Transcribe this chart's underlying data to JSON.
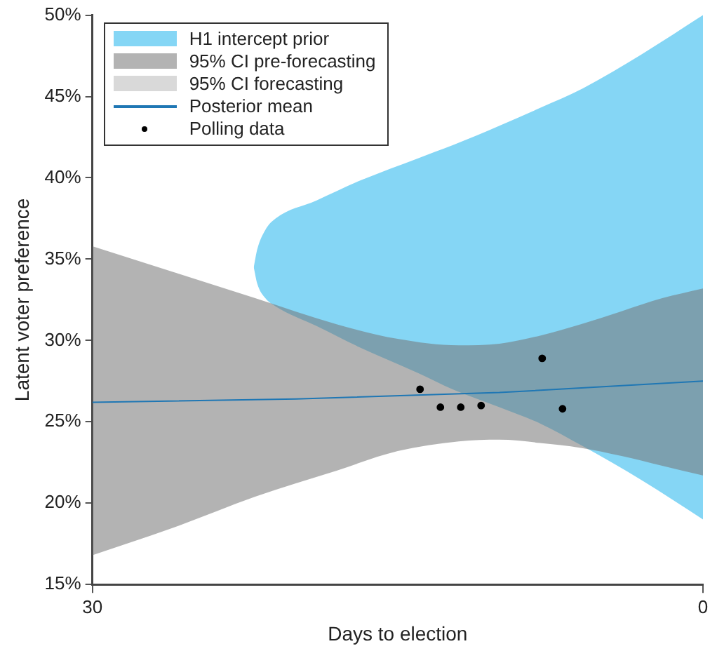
{
  "chart_data": {
    "type": "line",
    "xlabel": "Days to election",
    "ylabel": "Latent voter preference",
    "xlim": [
      30,
      0
    ],
    "xticks": [
      30,
      0
    ],
    "ylim": [
      15,
      50
    ],
    "yticks": [
      {
        "value": 15,
        "label": "15%"
      },
      {
        "value": 20,
        "label": "20%"
      },
      {
        "value": 25,
        "label": "25%"
      },
      {
        "value": 30,
        "label": "30%"
      },
      {
        "value": 35,
        "label": "35%"
      },
      {
        "value": 40,
        "label": "40%"
      },
      {
        "value": 45,
        "label": "45%"
      },
      {
        "value": 50,
        "label": "50%"
      }
    ],
    "grid": false,
    "legend": "top left",
    "series": [
      {
        "name": "H1 intercept prior",
        "type": "area",
        "color": "#85d6f5",
        "x": [
          22.07,
          21.9,
          21.5,
          21,
          19,
          16.9,
          14,
          12.3,
          10,
          8,
          5.9,
          3,
          0
        ],
        "values": [
          null,
          null,
          null,
          null,
          null,
          null,
          null,
          null,
          null,
          null,
          null,
          null,
          null
        ],
        "upper": [
          34.5,
          35.6,
          36.8,
          37.5,
          38.6,
          39.8,
          41.2,
          42.0,
          43.2,
          44.3,
          45.5,
          47.6,
          50
        ],
        "lower": [
          34.5,
          33.5,
          32.6,
          32.1,
          30.9,
          29.6,
          28.0,
          27.0,
          25.9,
          24.9,
          23.5,
          21.4,
          19.0
        ]
      },
      {
        "name": "95% CI pre-forecasting",
        "type": "area",
        "color": "#b3b3b3",
        "x": [
          30,
          26,
          22,
          18,
          15,
          12,
          10,
          8,
          6,
          4,
          2,
          0
        ],
        "values": [
          null,
          null,
          null,
          null,
          null,
          null,
          null,
          null,
          null,
          null,
          null,
          null
        ],
        "upper": [
          35.8,
          34.2,
          32.6,
          31.0,
          30.1,
          29.7,
          29.8,
          30.3,
          31.0,
          31.8,
          32.6,
          33.2
        ],
        "lower": [
          16.8,
          18.5,
          20.4,
          22.0,
          23.2,
          23.8,
          23.9,
          23.7,
          23.4,
          22.9,
          22.3,
          21.7
        ]
      },
      {
        "name": "95% CI forecasting",
        "type": "area",
        "color": "#d9d9d9"
      },
      {
        "name": "Posterior mean",
        "color": "#1f77b4",
        "x": [
          30,
          20,
          10,
          0
        ],
        "values": [
          26.2,
          26.4,
          26.8,
          27.5
        ]
      },
      {
        "name": "Polling data",
        "type": "scatter",
        "color": "#000000",
        "marker": "circle",
        "x": [
          13.9,
          12.9,
          11.9,
          10.9,
          7.9,
          6.9
        ],
        "values": [
          27.0,
          25.9,
          25.9,
          26.0,
          28.9,
          25.8
        ]
      }
    ]
  }
}
